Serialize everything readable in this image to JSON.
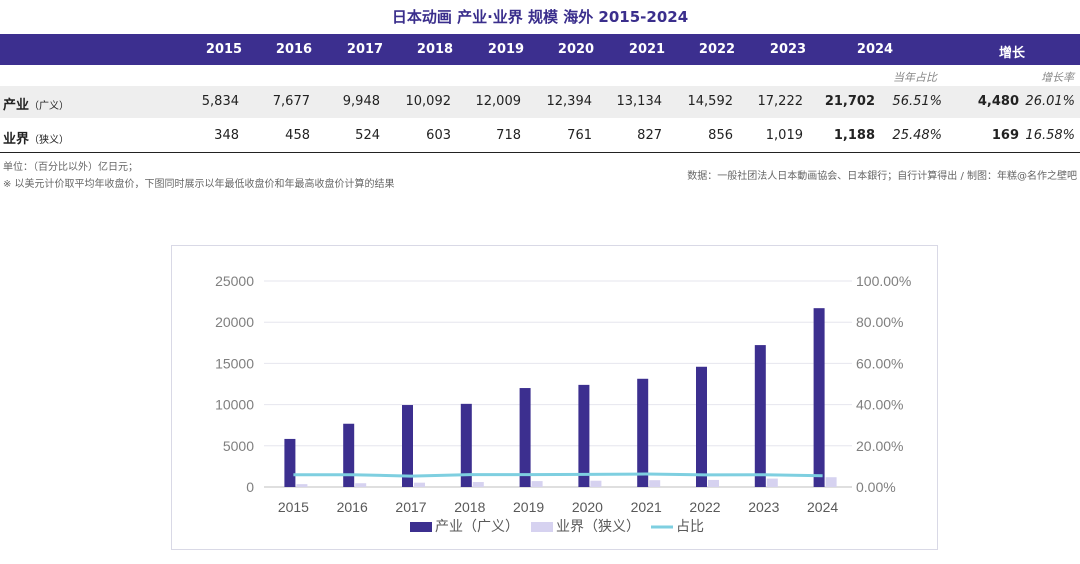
{
  "title": "日本动画 产业·业界 规模 海外 2015-2024",
  "table": {
    "years": [
      "2015",
      "2016",
      "2017",
      "2018",
      "2019",
      "2020",
      "2021",
      "2022",
      "2023",
      "2024"
    ],
    "growth_header": "增长",
    "share_sub": "当年占比",
    "growth_rate_sub": "增长率",
    "rows": [
      {
        "label": "产业",
        "label_sub": "（广义）",
        "values": [
          "5,834",
          "7,677",
          "9,948",
          "10,092",
          "12,009",
          "12,394",
          "13,134",
          "14,592",
          "17,222",
          "21,702"
        ],
        "share": "56.51%",
        "growth": "4,480",
        "growth_rate": "26.01%"
      },
      {
        "label": "业界",
        "label_sub": "（狭义）",
        "values": [
          "348",
          "458",
          "524",
          "603",
          "718",
          "761",
          "827",
          "856",
          "1,019",
          "1,188"
        ],
        "share": "25.48%",
        "growth": "169",
        "growth_rate": "16.58%"
      }
    ]
  },
  "notes": {
    "unit": "单位：（百分比以外）亿日元；",
    "method": "※ 以美元计价取平均年收盘价，下图同时展示以年最低收盘价和年最高收盘价计算的结果",
    "source": "数据：一般社团法人日本動画協会、日本銀行；自行计算得出 / 制图：年糕@名作之壁吧"
  },
  "colors": {
    "header_bg": "#3c2f8f",
    "bar_primary": "#3c2f8f",
    "bar_secondary": "#d6d2f0",
    "line": "#7ecfe0"
  },
  "chart_data": {
    "type": "bar",
    "categories": [
      "2015",
      "2016",
      "2017",
      "2018",
      "2019",
      "2020",
      "2021",
      "2022",
      "2023",
      "2024"
    ],
    "series": [
      {
        "name": "产业（广义）",
        "type": "bar",
        "axis": "left",
        "values": [
          5834,
          7677,
          9948,
          10092,
          12009,
          12394,
          13134,
          14592,
          17222,
          21702
        ]
      },
      {
        "name": "业界（狭义）",
        "type": "bar",
        "axis": "left",
        "values": [
          348,
          458,
          524,
          603,
          718,
          761,
          827,
          856,
          1019,
          1188
        ]
      },
      {
        "name": "占比",
        "type": "line",
        "axis": "right",
        "values": [
          5.97,
          5.97,
          5.27,
          5.98,
          5.98,
          6.14,
          6.3,
          5.87,
          5.92,
          5.47
        ]
      }
    ],
    "ylim": [
      0,
      25000
    ],
    "yticks": [
      0,
      5000,
      10000,
      15000,
      20000,
      25000
    ],
    "ylim2": [
      0,
      100
    ],
    "yticks2": [
      "0.00%",
      "20.00%",
      "40.00%",
      "60.00%",
      "80.00%",
      "100.00%"
    ],
    "grid": true,
    "legend": "bottom"
  }
}
